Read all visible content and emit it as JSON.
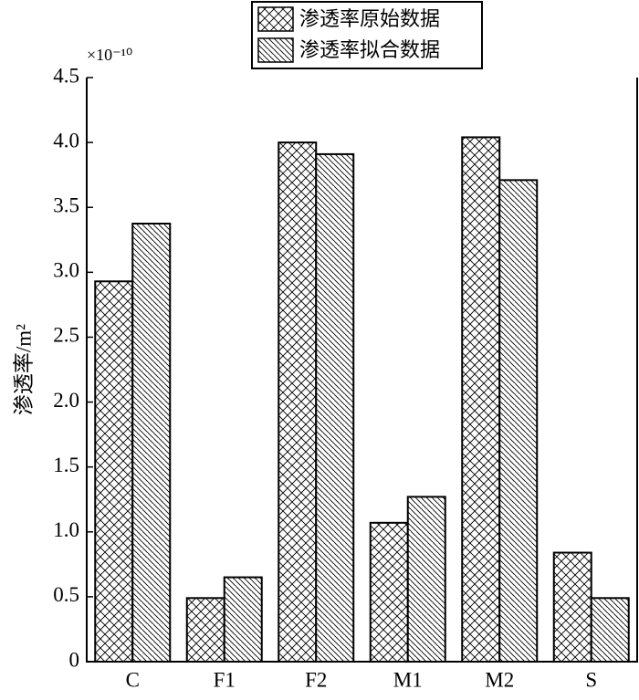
{
  "chart_data": {
    "type": "bar",
    "y_label": "渗透率/m²",
    "scale_note": "×10⁻¹⁰",
    "categories": [
      "C",
      "F1",
      "F2",
      "M1",
      "M2",
      "S"
    ],
    "series": [
      {
        "name": "渗透率原始数据",
        "color": "#000000",
        "pattern": "crosshatch",
        "values": [
          2.93,
          0.49,
          4.0,
          1.07,
          4.04,
          0.84
        ]
      },
      {
        "name": "渗透率拟合数据",
        "color": "#000000",
        "pattern": "diagonal",
        "values": [
          3.375,
          0.65,
          3.91,
          1.27,
          3.71,
          0.49
        ]
      }
    ],
    "ylim": [
      0,
      4.5
    ],
    "yticks": [
      0,
      0.5,
      {
        "value": 1,
        "label": "1.0"
      },
      1.5,
      {
        "value": 2,
        "label": "2.0"
      },
      2.5,
      {
        "value": 3,
        "label": "3.0"
      },
      3.5,
      {
        "value": 4,
        "label": "4.0"
      },
      4.5
    ],
    "legend": "top"
  }
}
